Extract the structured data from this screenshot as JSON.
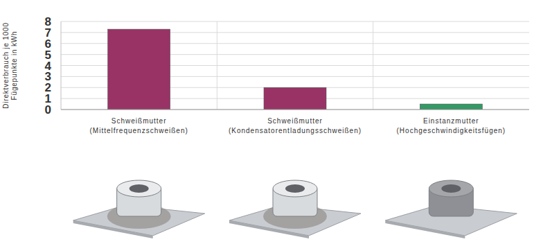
{
  "chart_data": {
    "type": "bar",
    "y_label": "Direktverbrauch je 1000\nFügepunkte in kWh",
    "categories": [
      "Schweißmutter\n(Mittelfrequenzschweißen)",
      "Schweißmutter\n(Kondensatorentladungsschweißen)",
      "Einstanzmutter\n(Hochgeschwindigkeitsfügen)"
    ],
    "values": [
      7.3,
      2.0,
      0.5
    ],
    "colors": [
      "#993366",
      "#993366",
      "#339966"
    ],
    "ylim": [
      0,
      8
    ],
    "yticks": [
      0,
      1,
      2,
      3,
      4,
      5,
      6,
      7,
      8
    ],
    "grid": true
  }
}
